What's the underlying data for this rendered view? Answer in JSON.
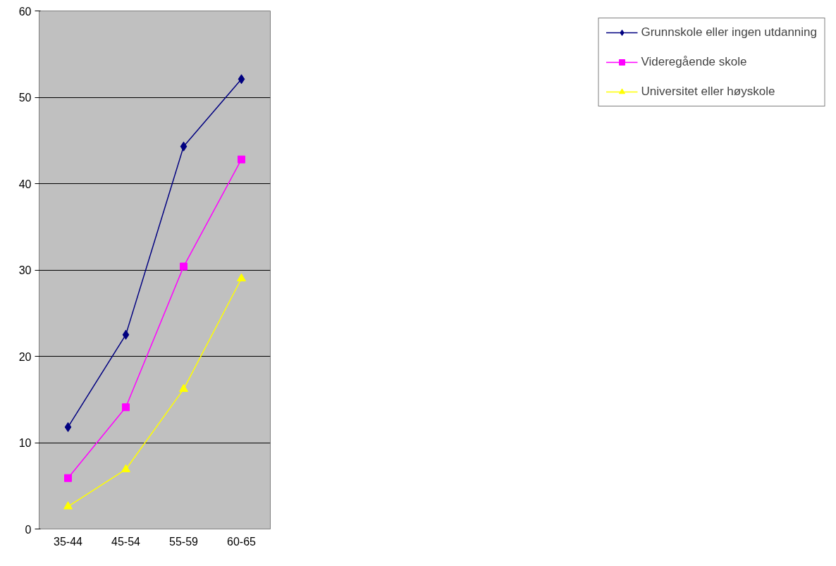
{
  "chart_data": {
    "type": "line",
    "categories": [
      "35-44",
      "45-54",
      "55-59",
      "60-65"
    ],
    "series": [
      {
        "name": "Grunnskole eller ingen utdanning",
        "color": "#000080",
        "marker": "diamond",
        "values": [
          11.8,
          22.5,
          44.3,
          52.1
        ]
      },
      {
        "name": "Videregående skole",
        "color": "#ff00ff",
        "marker": "square",
        "values": [
          5.9,
          14.1,
          30.4,
          42.8
        ]
      },
      {
        "name": "Universitet eller høyskole",
        "color": "#ffff00",
        "marker": "triangle",
        "values": [
          2.6,
          6.9,
          16.2,
          29.0
        ]
      }
    ],
    "ylim": [
      0,
      60
    ],
    "yticks": [
      0,
      10,
      20,
      30,
      40,
      50,
      60
    ],
    "grid": "y",
    "legend": "right",
    "line_style": "solid"
  }
}
